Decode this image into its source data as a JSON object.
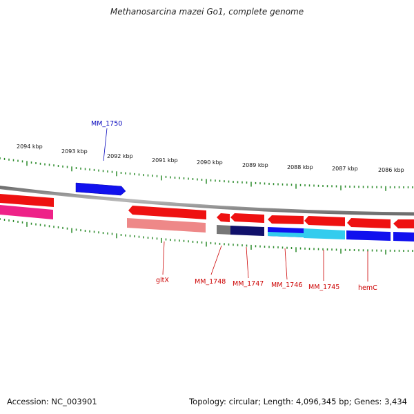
{
  "title": "Methanosarcina mazei Go1, complete genome",
  "footer": {
    "accession": "Accession: NC_003901",
    "summary": "Topology: circular; Length: 4,096,345 bp; Genes: 3,434"
  },
  "scale": {
    "labels": [
      "2094 kbp",
      "2093 kbp",
      "2092 kbp",
      "2091 kbp",
      "2090 kbp",
      "2089 kbp",
      "2088 kbp",
      "2087 kbp",
      "2086 kbp"
    ]
  },
  "gene_labels": {
    "top": [
      "MM_1750"
    ],
    "bottom": [
      "gltX",
      "MM_1748",
      "MM_1747",
      "MM_1746",
      "MM_1745",
      "hemC"
    ]
  },
  "colors": {
    "backbone": "#8c8c8c",
    "tick": "#2a8a2a",
    "gene_red": "#ee1111",
    "gene_blue": "#1111ee",
    "gene_pink": "#ee2288",
    "gene_lightred": "#ee8888",
    "gene_gray": "#777777",
    "gene_navy": "#11116b",
    "gene_cyan": "#33ccee",
    "label_red": "#cc0000",
    "label_blue": "#0000bb"
  }
}
